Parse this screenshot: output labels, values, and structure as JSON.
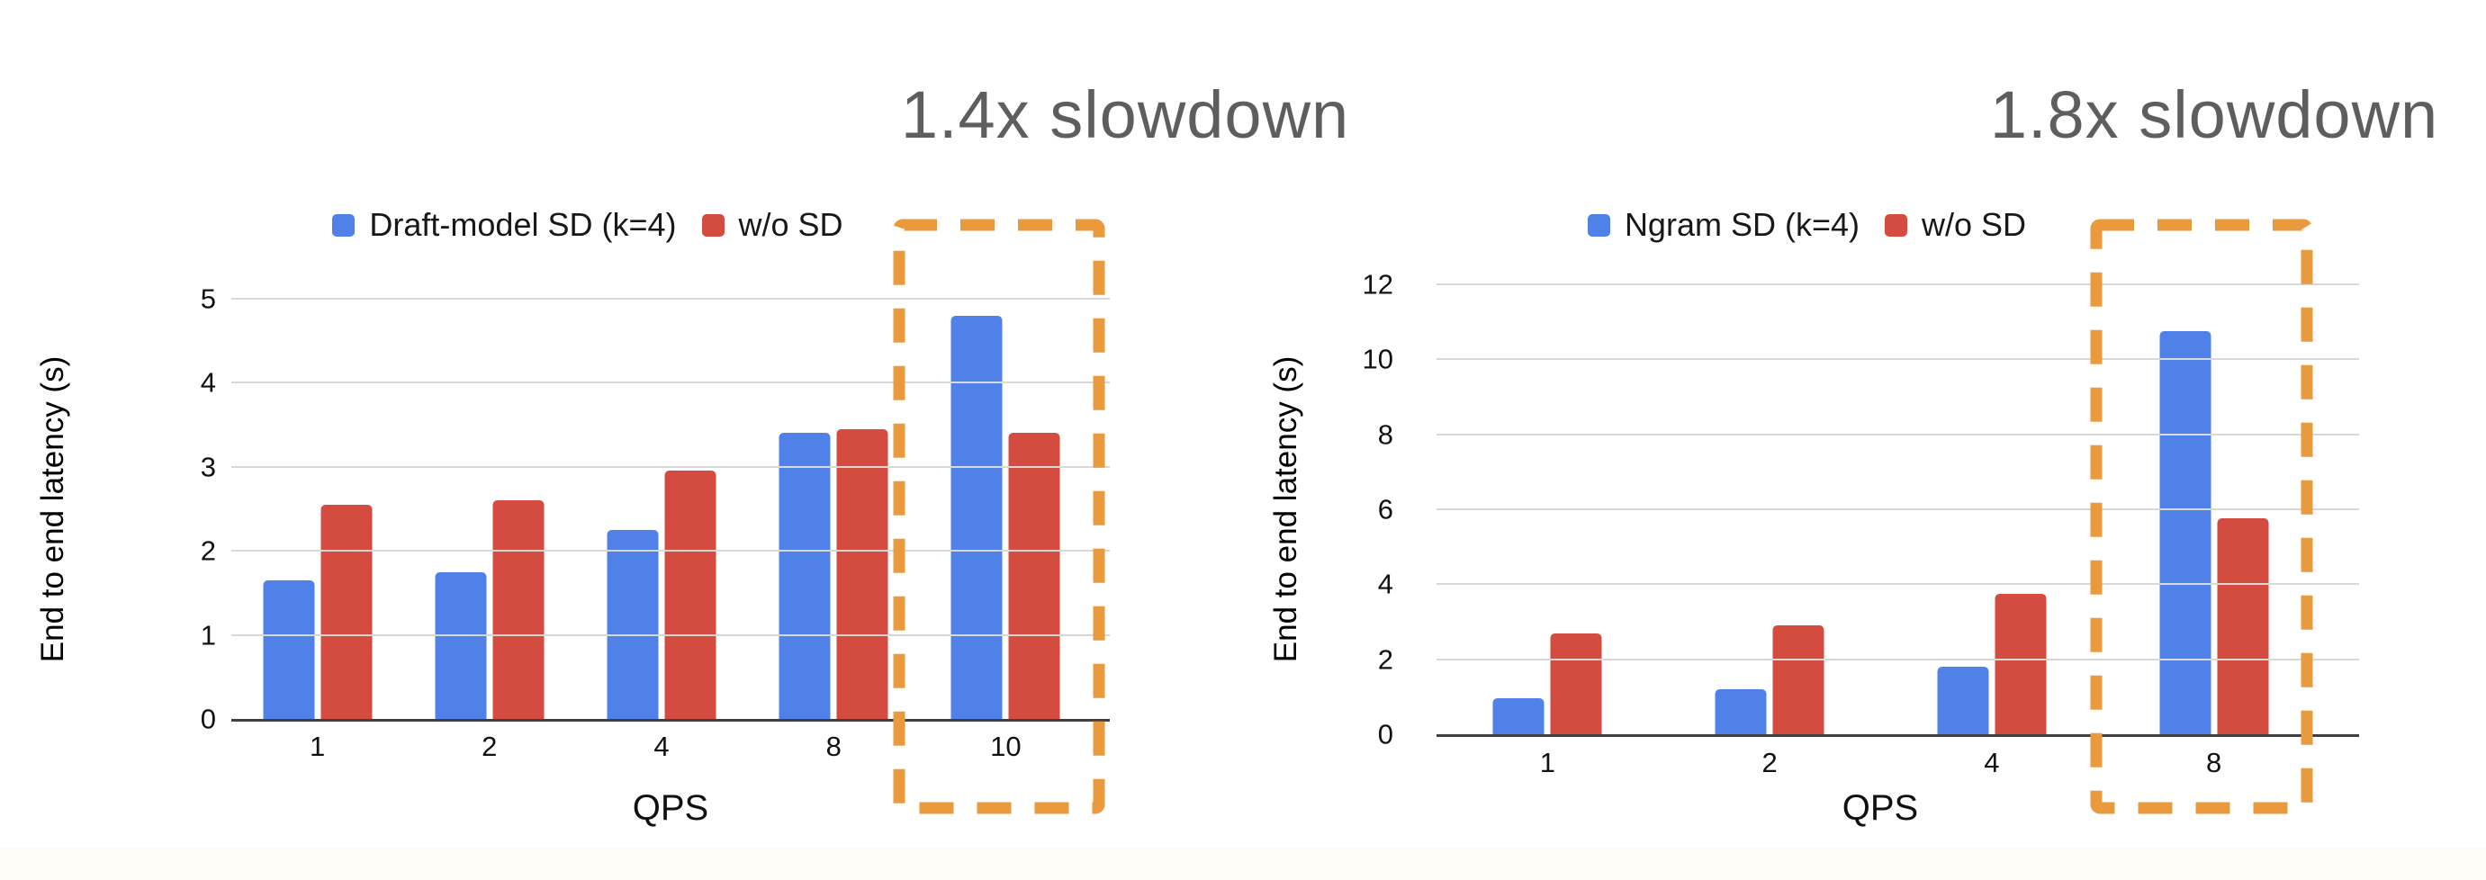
{
  "annotations": [
    {
      "text": "1.4x slowdown"
    },
    {
      "text": "1.8x slowdown"
    }
  ],
  "colors": {
    "blue": "#4f81e8",
    "red": "#d44b40",
    "highlight": "#e89a3c",
    "gridline": "#d8d8d8",
    "axis": "#3f3f3f",
    "annotation_text": "#5e5e5e"
  },
  "chart_data": [
    {
      "type": "bar",
      "title": "",
      "categories": [
        "1",
        "2",
        "4",
        "8",
        "10"
      ],
      "series": [
        {
          "name": "Draft-model SD (k=4)",
          "color_key": "blue",
          "values": [
            1.65,
            1.75,
            2.25,
            3.4,
            4.8
          ]
        },
        {
          "name": "w/o SD",
          "color_key": "red",
          "values": [
            2.55,
            2.6,
            2.95,
            3.45,
            3.4
          ]
        }
      ],
      "xlabel": "QPS",
      "ylabel": "End to end latency (s)",
      "ylim": [
        0,
        5
      ],
      "yticks": [
        0,
        1,
        2,
        3,
        4,
        5
      ],
      "grid": true,
      "legend_position": "top",
      "highlight": {
        "categories": [
          "10"
        ],
        "annotation": "1.4x slowdown"
      }
    },
    {
      "type": "bar",
      "title": "",
      "categories": [
        "1",
        "2",
        "4",
        "8"
      ],
      "series": [
        {
          "name": "Ngram SD (k=4)",
          "color_key": "blue",
          "values": [
            0.95,
            1.2,
            1.8,
            10.75
          ]
        },
        {
          "name": "w/o SD",
          "color_key": "red",
          "values": [
            2.7,
            2.9,
            3.75,
            5.75
          ]
        }
      ],
      "xlabel": "QPS",
      "ylabel": "End to end latency (s)",
      "ylim": [
        0,
        12
      ],
      "yticks": [
        0,
        2,
        4,
        6,
        8,
        10,
        12
      ],
      "grid": true,
      "legend_position": "top",
      "highlight": {
        "categories": [
          "8"
        ],
        "annotation": "1.8x slowdown"
      }
    }
  ]
}
